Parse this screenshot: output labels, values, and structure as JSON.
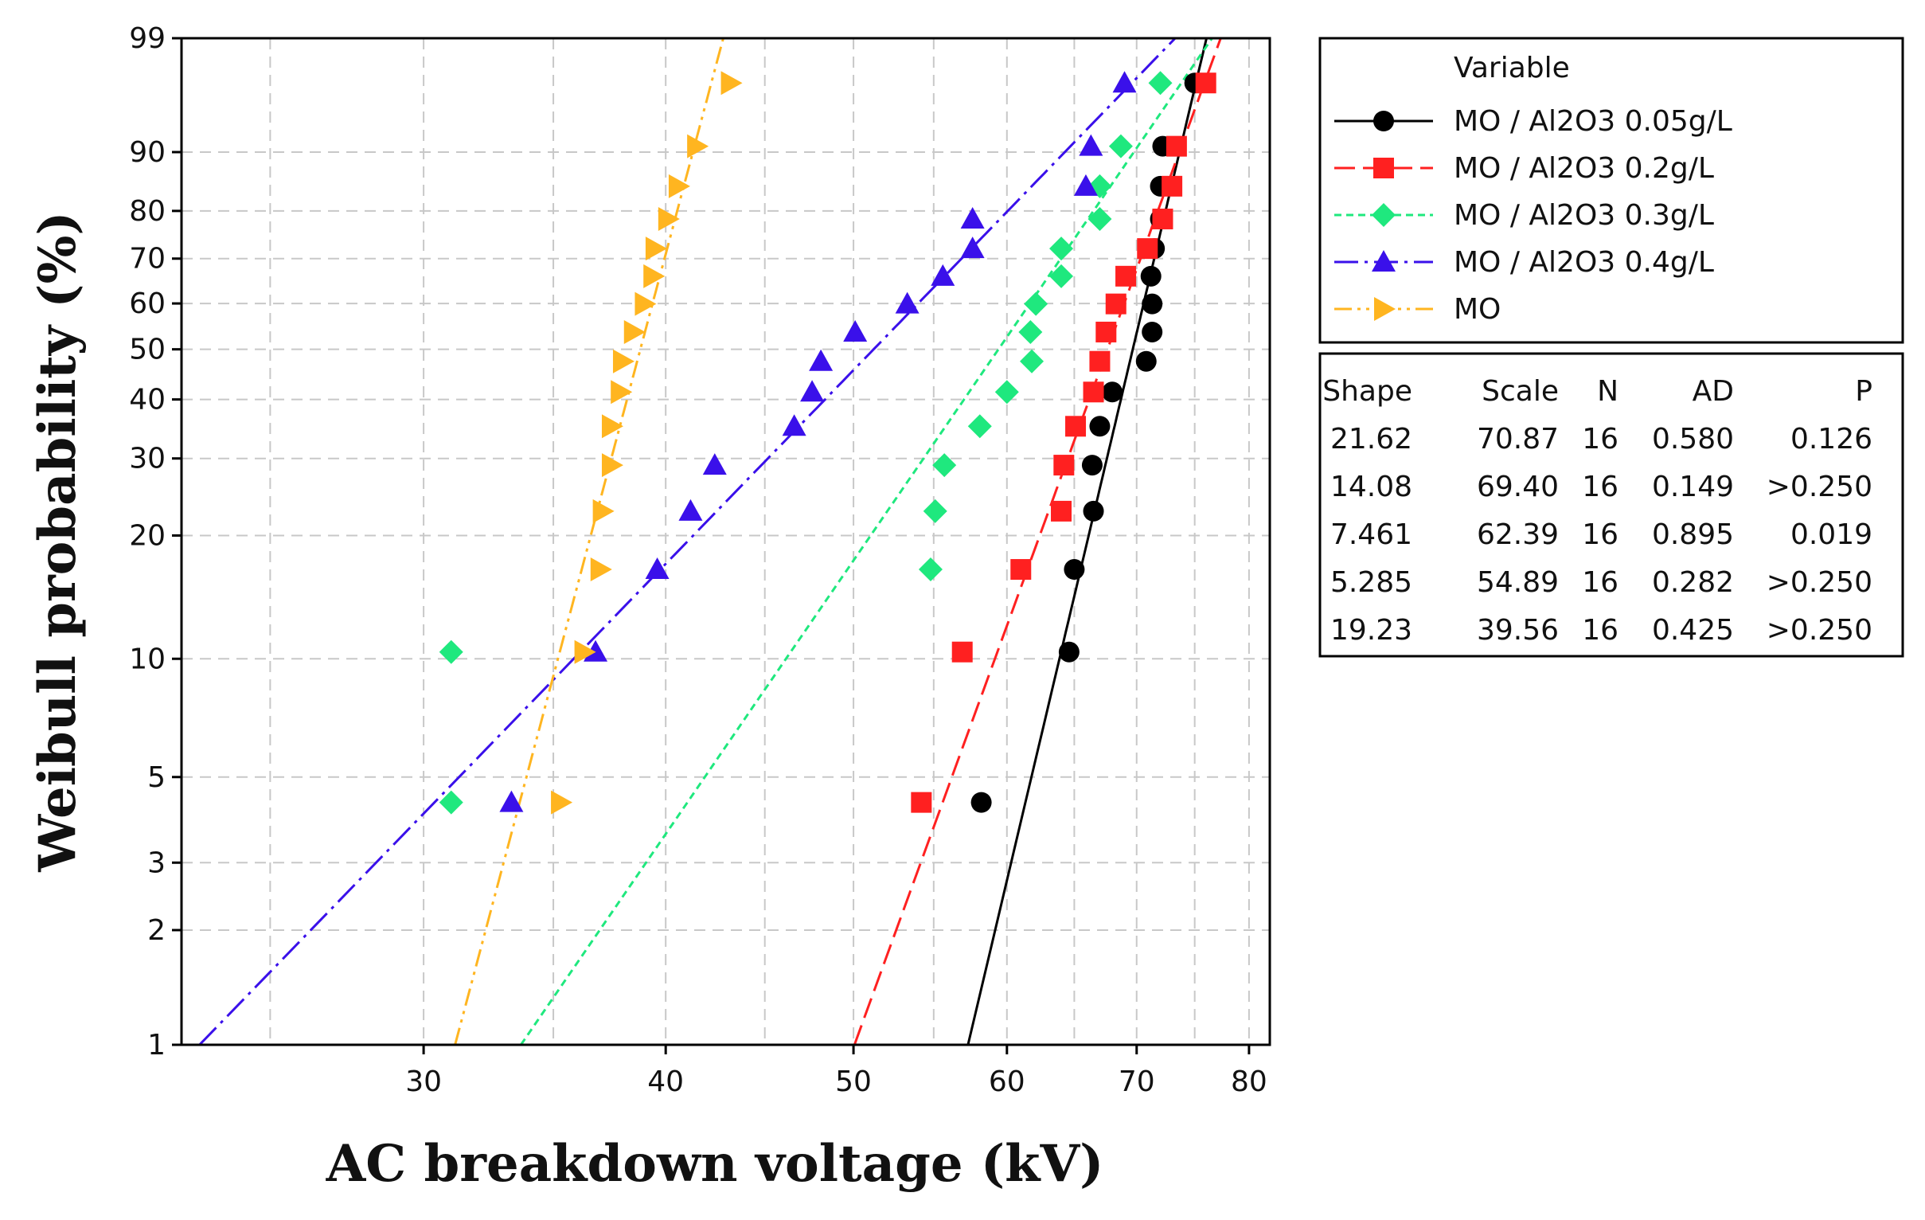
{
  "chart_data": {
    "type": "scatter",
    "title": "",
    "xlabel": "AC breakdown voltage (kV)",
    "ylabel": "Weibull probability (%)",
    "x_scale": "log",
    "y_scale": "weibull",
    "xlim": [
      22.5,
      82
    ],
    "ylim": [
      1,
      99
    ],
    "x_ticks": [
      30,
      40,
      50,
      60,
      70,
      80
    ],
    "x_tick_labels": [
      "30",
      "40",
      "50",
      "60",
      "70",
      "80"
    ],
    "x_minor_gridlines": [
      25,
      35,
      45,
      55,
      65,
      75
    ],
    "y_ticks": [
      1,
      2,
      3,
      5,
      10,
      20,
      30,
      40,
      50,
      60,
      70,
      80,
      90,
      99
    ],
    "y_tick_labels": [
      "1",
      "2",
      "3",
      "5",
      "10",
      "20",
      "30",
      "40",
      "50",
      "60",
      "70",
      "80",
      "90",
      "99"
    ],
    "grid": true,
    "legend_title": "Variable",
    "legend_position": "right-top",
    "probabilities": [
      4.3,
      10.4,
      16.6,
      22.8,
      29.0,
      35.2,
      41.4,
      47.5,
      53.7,
      59.9,
      66.1,
      72.2,
      78.4,
      84.6,
      90.8,
      97.0
    ],
    "series": [
      {
        "name": "MO / Al2O3 0.05g/L",
        "color": "#000000",
        "marker": "circle",
        "line_style": "solid",
        "shape": 21.62,
        "scale": 70.87,
        "values": [
          58.2,
          64.6,
          65.0,
          66.5,
          66.4,
          67.0,
          68.0,
          70.8,
          71.3,
          71.3,
          71.2,
          71.5,
          72.0,
          72.0,
          72.2,
          75.0
        ]
      },
      {
        "name": "MO / Al2O3 0.2g/L",
        "color": "#ff2020",
        "marker": "square",
        "line_style": "long-dash",
        "shape": 14.08,
        "scale": 69.4,
        "values": [
          54.2,
          56.9,
          61.0,
          64.0,
          64.2,
          65.1,
          66.5,
          67.0,
          67.5,
          68.3,
          69.1,
          70.9,
          72.2,
          73.0,
          73.4,
          76.0
        ]
      },
      {
        "name": "MO / Al2O3 0.3g/L",
        "color": "#1fe87e",
        "marker": "diamond",
        "line_style": "dash",
        "shape": 7.461,
        "scale": 62.39,
        "values": [
          31.0,
          31.0,
          54.8,
          55.1,
          55.7,
          58.1,
          60.0,
          61.8,
          61.7,
          62.1,
          64.0,
          64.0,
          67.0,
          67.0,
          68.7,
          72.0
        ]
      },
      {
        "name": "MO / Al2O3 0.4g/L",
        "color": "#3a10ea",
        "marker": "triangle-up",
        "line_style": "dash-dot",
        "shape": 5.285,
        "scale": 54.89,
        "values": [
          33.3,
          36.8,
          39.6,
          41.2,
          42.4,
          46.6,
          47.6,
          48.1,
          50.1,
          53.3,
          55.6,
          57.6,
          57.6,
          65.9,
          66.3,
          69.0
        ]
      },
      {
        "name": "MO",
        "color": "#ffb520",
        "marker": "triangle-right",
        "line_style": "dash-dot-dot",
        "shape": 19.23,
        "scale": 39.56,
        "values": [
          35.3,
          36.3,
          37.0,
          37.1,
          37.5,
          37.5,
          37.9,
          38.0,
          38.5,
          39.0,
          39.4,
          39.5,
          40.1,
          40.6,
          41.5,
          43.2
        ]
      }
    ],
    "stats_table": {
      "headers": [
        "Shape",
        "Scale",
        "N",
        "AD",
        "P"
      ],
      "rows": [
        [
          "21.62",
          "70.87",
          "16",
          "0.580",
          "0.126"
        ],
        [
          "14.08",
          "69.40",
          "16",
          "0.149",
          ">0.250"
        ],
        [
          "7.461",
          "62.39",
          "16",
          "0.895",
          "0.019"
        ],
        [
          "5.285",
          "54.89",
          "16",
          "0.282",
          ">0.250"
        ],
        [
          "19.23",
          "39.56",
          "16",
          "0.425",
          ">0.250"
        ]
      ]
    }
  }
}
